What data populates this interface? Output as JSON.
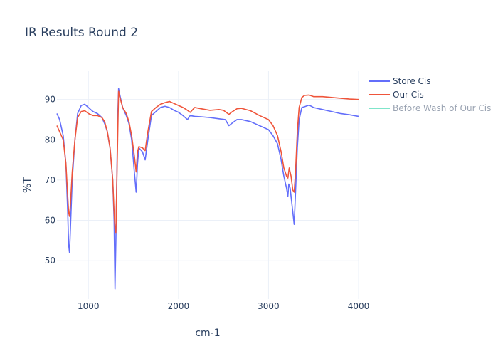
{
  "chart_data": {
    "type": "line",
    "title": "IR Results Round 2",
    "xlabel": "cm-1",
    "ylabel": "%T",
    "xlim": [
      650,
      4000
    ],
    "ylim": [
      40.5,
      97
    ],
    "x_ticks": [
      1000,
      2000,
      3000,
      4000
    ],
    "y_ticks": [
      50,
      60,
      70,
      80,
      90
    ],
    "grid": true,
    "legend_position": "top-right",
    "series": [
      {
        "name": "Store Cis",
        "color": "#636efa",
        "visible": true,
        "points": [
          [
            650,
            86.5
          ],
          [
            680,
            85
          ],
          [
            720,
            81
          ],
          [
            750,
            74
          ],
          [
            770,
            62
          ],
          [
            780,
            54
          ],
          [
            790,
            52
          ],
          [
            800,
            58
          ],
          [
            820,
            70
          ],
          [
            850,
            80
          ],
          [
            880,
            86.5
          ],
          [
            920,
            88.5
          ],
          [
            960,
            88.8
          ],
          [
            1000,
            88
          ],
          [
            1050,
            87
          ],
          [
            1100,
            86.5
          ],
          [
            1150,
            85.5
          ],
          [
            1180,
            84
          ],
          [
            1210,
            82
          ],
          [
            1240,
            78
          ],
          [
            1270,
            70
          ],
          [
            1285,
            60
          ],
          [
            1295,
            43
          ],
          [
            1305,
            55
          ],
          [
            1315,
            70
          ],
          [
            1325,
            85
          ],
          [
            1335,
            92.7
          ],
          [
            1350,
            91
          ],
          [
            1380,
            88
          ],
          [
            1420,
            86
          ],
          [
            1450,
            84
          ],
          [
            1480,
            80
          ],
          [
            1510,
            72
          ],
          [
            1530,
            67
          ],
          [
            1545,
            74
          ],
          [
            1560,
            78
          ],
          [
            1600,
            77
          ],
          [
            1630,
            75
          ],
          [
            1660,
            80
          ],
          [
            1700,
            86
          ],
          [
            1750,
            87
          ],
          [
            1800,
            88
          ],
          [
            1850,
            88.3
          ],
          [
            1900,
            88
          ],
          [
            1950,
            87.3
          ],
          [
            2000,
            86.8
          ],
          [
            2050,
            86
          ],
          [
            2100,
            85
          ],
          [
            2130,
            86
          ],
          [
            2180,
            85.8
          ],
          [
            2250,
            85.7
          ],
          [
            2350,
            85.5
          ],
          [
            2450,
            85.2
          ],
          [
            2520,
            85
          ],
          [
            2560,
            83.5
          ],
          [
            2600,
            84.2
          ],
          [
            2650,
            85
          ],
          [
            2700,
            85
          ],
          [
            2800,
            84.5
          ],
          [
            2900,
            83.5
          ],
          [
            3000,
            82.5
          ],
          [
            3050,
            81
          ],
          [
            3100,
            79
          ],
          [
            3140,
            75
          ],
          [
            3170,
            71
          ],
          [
            3200,
            68
          ],
          [
            3215,
            66
          ],
          [
            3225,
            69
          ],
          [
            3240,
            68
          ],
          [
            3270,
            62
          ],
          [
            3285,
            59
          ],
          [
            3300,
            67
          ],
          [
            3320,
            78
          ],
          [
            3340,
            85
          ],
          [
            3370,
            88
          ],
          [
            3400,
            88.2
          ],
          [
            3450,
            88.6
          ],
          [
            3500,
            88
          ],
          [
            3600,
            87.5
          ],
          [
            3700,
            87
          ],
          [
            3800,
            86.5
          ],
          [
            3900,
            86.2
          ],
          [
            4000,
            85.8
          ]
        ]
      },
      {
        "name": "Our Cis",
        "color": "#ef553b",
        "visible": true,
        "points": [
          [
            650,
            83.5
          ],
          [
            680,
            82
          ],
          [
            720,
            80
          ],
          [
            750,
            74
          ],
          [
            770,
            66
          ],
          [
            780,
            62
          ],
          [
            790,
            61
          ],
          [
            800,
            64
          ],
          [
            820,
            72
          ],
          [
            850,
            80
          ],
          [
            880,
            85.5
          ],
          [
            920,
            87
          ],
          [
            960,
            87.2
          ],
          [
            1000,
            86.5
          ],
          [
            1050,
            86
          ],
          [
            1100,
            86
          ],
          [
            1150,
            85.5
          ],
          [
            1180,
            84.5
          ],
          [
            1210,
            82
          ],
          [
            1240,
            78
          ],
          [
            1270,
            70
          ],
          [
            1285,
            62
          ],
          [
            1295,
            58
          ],
          [
            1305,
            57
          ],
          [
            1320,
            75
          ],
          [
            1335,
            92
          ],
          [
            1350,
            90.5
          ],
          [
            1380,
            88
          ],
          [
            1420,
            86.5
          ],
          [
            1450,
            84.5
          ],
          [
            1480,
            81
          ],
          [
            1510,
            76
          ],
          [
            1530,
            72
          ],
          [
            1545,
            77
          ],
          [
            1560,
            78.3
          ],
          [
            1600,
            78
          ],
          [
            1630,
            77.3
          ],
          [
            1660,
            82
          ],
          [
            1700,
            87
          ],
          [
            1750,
            88
          ],
          [
            1800,
            88.8
          ],
          [
            1850,
            89.2
          ],
          [
            1900,
            89.5
          ],
          [
            1950,
            89
          ],
          [
            2000,
            88.5
          ],
          [
            2050,
            88
          ],
          [
            2100,
            87.3
          ],
          [
            2130,
            86.8
          ],
          [
            2180,
            88
          ],
          [
            2250,
            87.7
          ],
          [
            2350,
            87.3
          ],
          [
            2450,
            87.5
          ],
          [
            2500,
            87.3
          ],
          [
            2560,
            86.3
          ],
          [
            2600,
            87
          ],
          [
            2650,
            87.7
          ],
          [
            2700,
            87.8
          ],
          [
            2800,
            87.2
          ],
          [
            2900,
            86
          ],
          [
            3000,
            85
          ],
          [
            3050,
            83.5
          ],
          [
            3100,
            81
          ],
          [
            3140,
            77
          ],
          [
            3170,
            73
          ],
          [
            3200,
            71
          ],
          [
            3215,
            70.5
          ],
          [
            3230,
            73
          ],
          [
            3250,
            71
          ],
          [
            3270,
            67.5
          ],
          [
            3285,
            67
          ],
          [
            3300,
            72
          ],
          [
            3320,
            82
          ],
          [
            3340,
            88
          ],
          [
            3370,
            90.5
          ],
          [
            3400,
            91
          ],
          [
            3450,
            91.1
          ],
          [
            3500,
            90.7
          ],
          [
            3600,
            90.7
          ],
          [
            3700,
            90.5
          ],
          [
            3800,
            90.3
          ],
          [
            3900,
            90.1
          ],
          [
            4000,
            90
          ]
        ]
      },
      {
        "name": "Before Wash of Our Cis",
        "color": "#00cc96",
        "visible": false,
        "points": []
      }
    ]
  }
}
